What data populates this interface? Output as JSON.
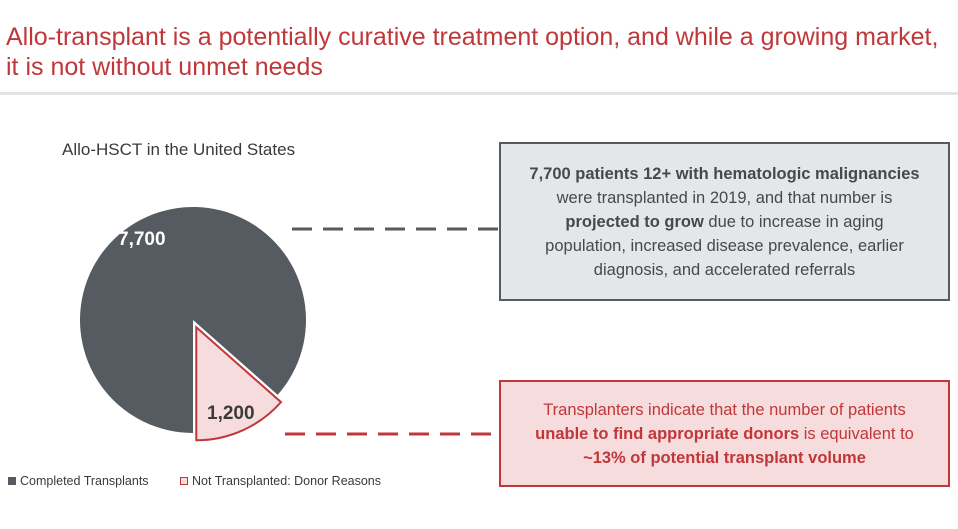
{
  "header": {
    "title": "Allo-transplant is a potentially curative treatment option, and while a growing market, it is not without unmet needs"
  },
  "chart_data": {
    "type": "pie",
    "title": "Allo-HSCT in the United States",
    "slices": [
      {
        "name": "Completed Transplants",
        "value": 7700,
        "label": "7,700",
        "color": "#555b61",
        "exploded": false
      },
      {
        "name": "Not Transplanted: Donor Reasons",
        "value": 1200,
        "label": "1,200",
        "color": "#f6dcdc",
        "stroke": "#c0373a",
        "exploded": true
      }
    ],
    "legend": {
      "placement": "bottom-left",
      "items": [
        "Completed Transplants",
        "Not Transplanted: Donor Reasons"
      ]
    }
  },
  "callouts": {
    "gray": {
      "bold1": "7,700 patients 12+ with hematologic malignancies",
      "text1": " were transplanted in 2019, and that number is ",
      "bold2": "projected to grow",
      "text2": " due to increase in aging population, increased disease prevalence, earlier diagnosis,  and accelerated referrals"
    },
    "red": {
      "text1": "Transplanters indicate that the number of patients ",
      "bold1": "unable to find appropriate donors",
      "text2": " is equivalent to ",
      "bold2": "~13% of potential transplant volume"
    }
  },
  "colors": {
    "accent_red": "#c0373a",
    "dark_gray": "#555b61",
    "light_red": "#f6dcdc",
    "light_gray": "#e5e6e8"
  }
}
